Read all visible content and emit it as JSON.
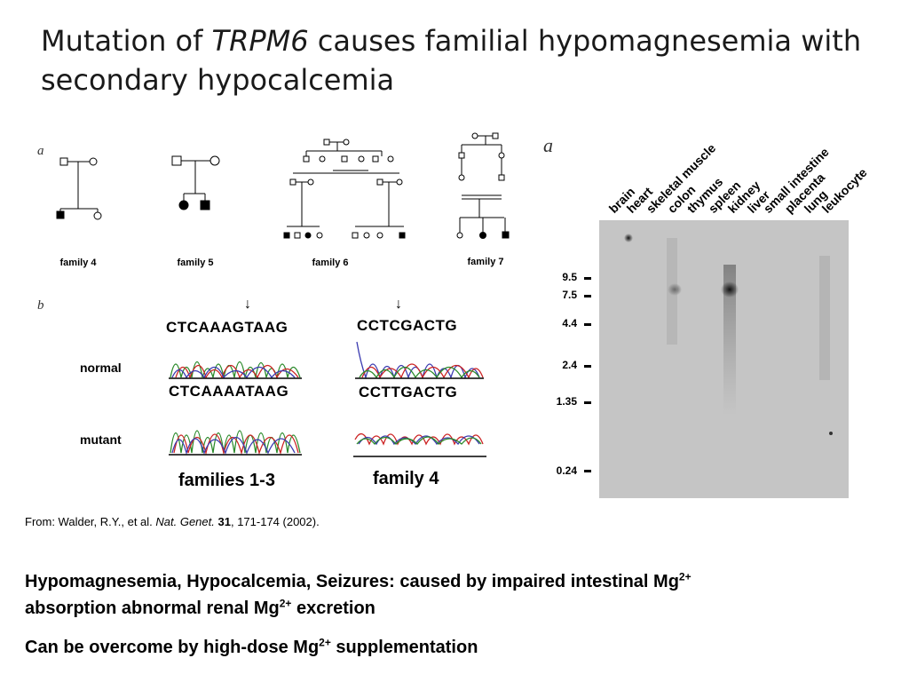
{
  "title": {
    "part1": "Mutation of ",
    "gene": "TRPM6",
    "part2": " causes familial hypomagnesemia with secondary hypocalcemia"
  },
  "left_figure": {
    "panel_a": "a",
    "panel_b": "b",
    "families": [
      "family 4",
      "family 5",
      "family 6",
      "family 7"
    ],
    "seq_normal_1": "CTCAAAGTAAG",
    "seq_mutant_1": "CTCAAAATAAG",
    "seq_normal_2": "CCTCGACTG",
    "seq_mutant_2": "CCTTGACTG",
    "row_normal": "normal",
    "row_mutant": "mutant",
    "group_1": "families 1-3",
    "group_2": "family 4",
    "arrow": "↓"
  },
  "right_figure": {
    "panel_a": "a",
    "lanes": [
      "brain",
      "heart",
      "skeletal muscle",
      "colon",
      "thymus",
      "spleen",
      "kidney",
      "liver",
      "small intestine",
      "placenta",
      "lung",
      "leukocyte"
    ],
    "markers": [
      "9.5",
      "7.5",
      "4.4",
      "2.4",
      "1.35",
      "0.24"
    ]
  },
  "citation": {
    "prefix": "From: Walder, R.Y., et al. ",
    "journal": "Nat. Genet.",
    "volume": "31",
    "rest": ", 171-174 (2002)."
  },
  "bullets": {
    "b1_text": "Hypomagnesemia, Hypocalcemia, Seizures: caused by impaired intestinal Mg",
    "b1_text2": "absorption abnormal renal Mg",
    "b1_text3": " excretion",
    "b2_text": "Can be overcome by high-dose Mg",
    "b2_text2": " supplementation",
    "charge": "2+"
  }
}
